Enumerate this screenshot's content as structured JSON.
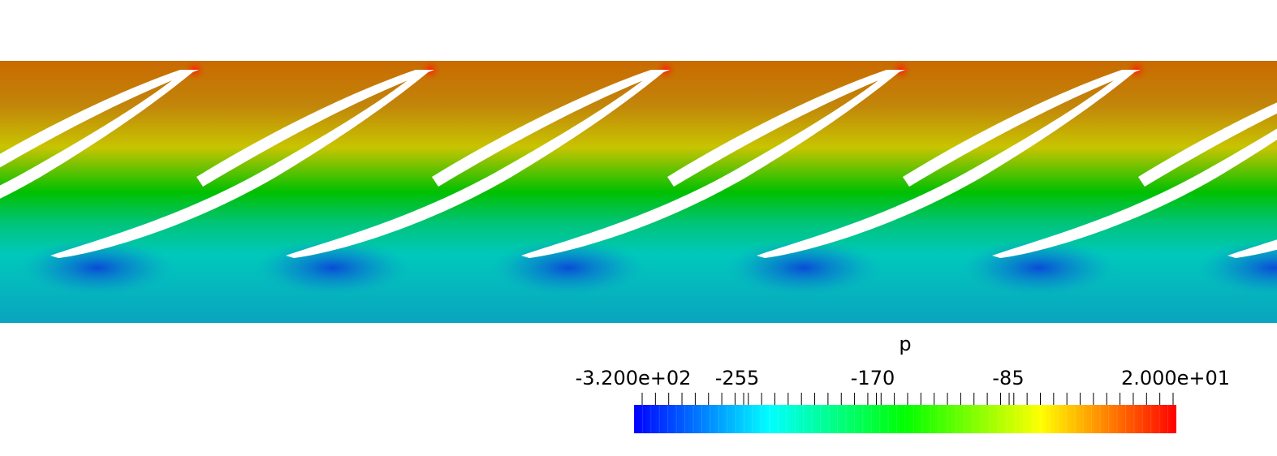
{
  "scalar_bar": {
    "title": "p",
    "tick_labels": [
      "-3.200e+02",
      "-255",
      "-170",
      "-85",
      "2.000e+01"
    ],
    "range": [
      -320,
      20
    ],
    "major_ticks": [
      -320,
      -255,
      -170,
      -85,
      20
    ],
    "colormap": [
      "#0000ff",
      "#00ffff",
      "#00ff00",
      "#ffff00",
      "#ff0000"
    ]
  },
  "field_colors": {
    "high": "#c96a00",
    "mid_high": "#c8c400",
    "mid": "#00c000",
    "mid_low": "#00c8bc",
    "low": "#0aa4bf",
    "dark_low": "#0a5fd0"
  }
}
